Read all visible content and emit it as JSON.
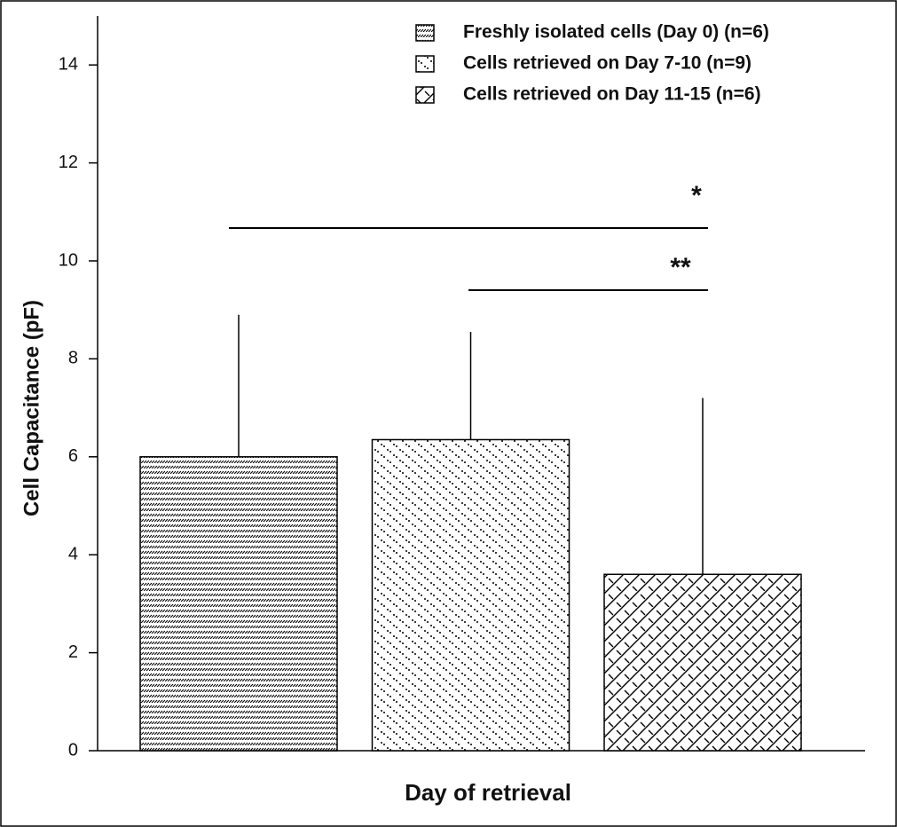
{
  "chart_data": {
    "type": "bar",
    "y_label": "Cell Capacitance (pF)",
    "x_label": "Day of retrieval",
    "categories": [
      null
    ],
    "series": [
      {
        "name": "Freshly isolated cells (Day 0) (n=6)",
        "color": "#000000",
        "values": [
          6.0
        ],
        "errors": [
          2.9
        ]
      },
      {
        "name": "Cells retrieved on Day 7-10 (n=9)",
        "color": "#000000",
        "values": [
          6.35
        ],
        "errors": [
          2.2
        ]
      },
      {
        "name": "Cells retrieved on Day 11-15 (n=6)",
        "color": "#000000",
        "values": [
          3.6
        ],
        "errors": [
          3.6
        ]
      }
    ],
    "annotations": [
      "*",
      "**"
    ],
    "ylim": [
      0,
      15
    ],
    "yticks": [
      0,
      2,
      4,
      6,
      8,
      10,
      12,
      14
    ],
    "legend": "upper right"
  }
}
